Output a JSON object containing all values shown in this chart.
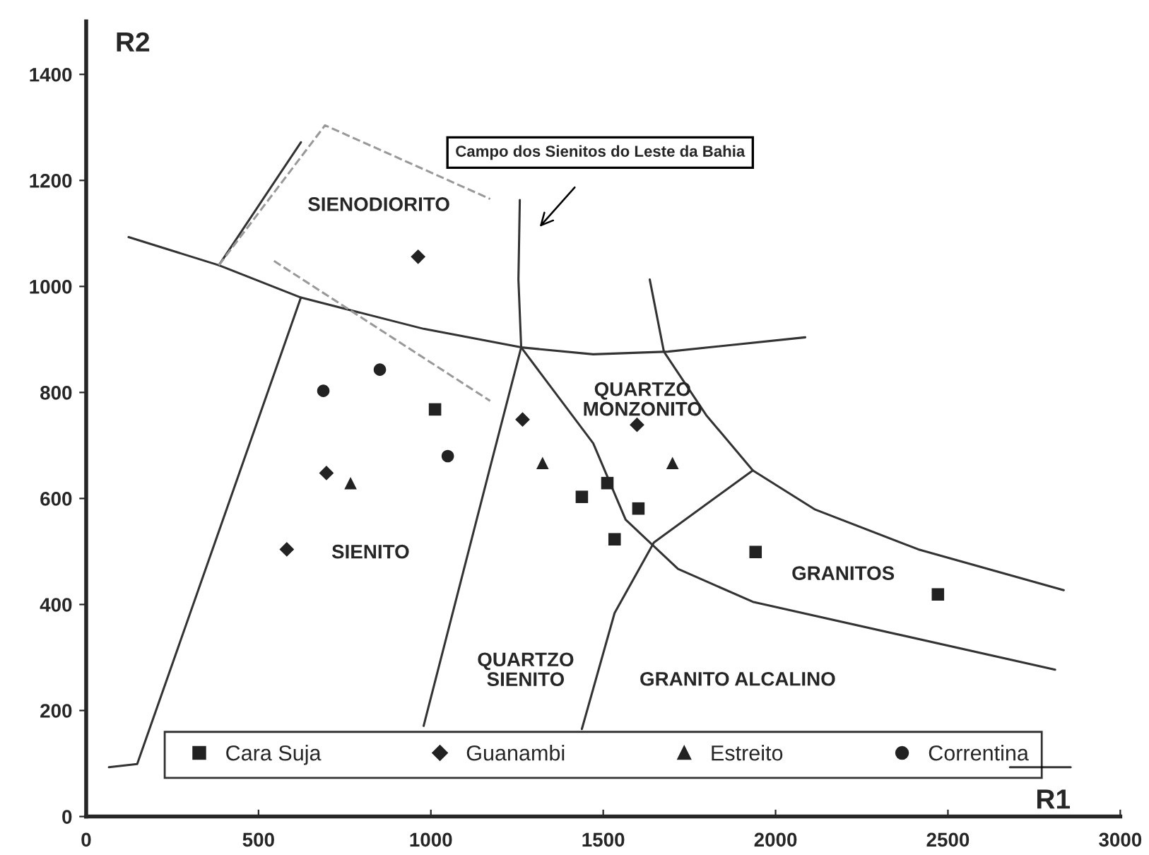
{
  "chart_data": {
    "type": "scatter",
    "xlabel": "R1",
    "ylabel": "R2",
    "xlim": [
      0,
      3000
    ],
    "ylim": [
      0,
      1500
    ],
    "xticks": [
      0,
      500,
      1000,
      1500,
      2000,
      2500,
      3000
    ],
    "yticks": [
      0,
      200,
      400,
      600,
      800,
      1000,
      1200,
      1400
    ],
    "grid": false,
    "legend": "bottom",
    "series": [
      {
        "name": "Cara Suja",
        "marker": "square",
        "color": "#222222",
        "x": [
          1012,
          1438,
          1512,
          1602,
          1533,
          1942,
          2471
        ],
        "values": [
          768,
          603,
          629,
          581,
          523,
          499,
          419
        ]
      },
      {
        "name": "Guanambi",
        "marker": "diamond",
        "color": "#222222",
        "x": [
          963,
          1266,
          697,
          582,
          1598
        ],
        "values": [
          1056,
          749,
          648,
          504,
          739
        ]
      },
      {
        "name": "Estreito",
        "marker": "triangle",
        "color": "#222222",
        "x": [
          767,
          1324,
          1701
        ],
        "values": [
          629,
          667,
          667
        ]
      },
      {
        "name": "Correntina",
        "marker": "circle",
        "color": "#222222",
        "x": [
          688,
          852,
          1049
        ],
        "values": [
          803,
          843,
          680
        ]
      },
      {
        "type": "line",
        "line_style": "solid",
        "color": "#333333",
        "x": [
          123,
          385,
          623,
          979,
          1262,
          1471,
          1688,
          2086
        ],
        "values": [
          1093,
          1040,
          979,
          920,
          885,
          872,
          877,
          904
        ]
      },
      {
        "type": "line",
        "line_style": "solid",
        "color": "#333333",
        "x": [
          1258,
          1254,
          1262,
          1172,
          979
        ],
        "values": [
          1163,
          1013,
          885,
          659,
          171
        ]
      },
      {
        "type": "line",
        "line_style": "solid",
        "color": "#333333",
        "x": [
          66,
          148,
          623
        ],
        "values": [
          93,
          99,
          979
        ]
      },
      {
        "type": "line",
        "line_style": "solid",
        "color": "#333333",
        "x": [
          385,
          623
        ],
        "values": [
          1040,
          1272
        ]
      },
      {
        "type": "line",
        "line_style": "solid",
        "color": "#333333",
        "x": [
          1635,
          1676,
          1717,
          1799,
          1934,
          2115,
          2414,
          2836
        ],
        "values": [
          1013,
          877,
          837,
          757,
          653,
          579,
          504,
          427
        ]
      },
      {
        "type": "line",
        "line_style": "solid",
        "color": "#333333",
        "x": [
          1262,
          1471,
          1565,
          1717,
          1934,
          2811
        ],
        "values": [
          885,
          704,
          560,
          467,
          405,
          277
        ]
      },
      {
        "type": "line",
        "line_style": "solid",
        "color": "#333333",
        "x": [
          1934,
          1647,
          1533,
          1438
        ],
        "values": [
          653,
          517,
          384,
          165
        ]
      },
      {
        "type": "line",
        "line_style": "solid",
        "color": "#333333",
        "x": [
          2680,
          2856
        ],
        "values": [
          93,
          93
        ]
      },
      {
        "type": "line",
        "line_style": "dashed",
        "color": "#999999",
        "x": [
          385,
          693,
          1172
        ],
        "values": [
          1040,
          1304,
          1165
        ]
      },
      {
        "type": "line",
        "line_style": "dashed",
        "color": "#999999",
        "x": [
          545,
          1172
        ],
        "values": [
          1048,
          784
        ]
      }
    ],
    "annotations": [
      "SIENODIORITO",
      "QUARTZO\nMONZONITO",
      "SIENITO",
      "QUARTZO\nSIENITO",
      "GRANITOS",
      "GRANITO ALCALINO",
      "Campo dos Sienitos do Leste da Bahia"
    ]
  }
}
